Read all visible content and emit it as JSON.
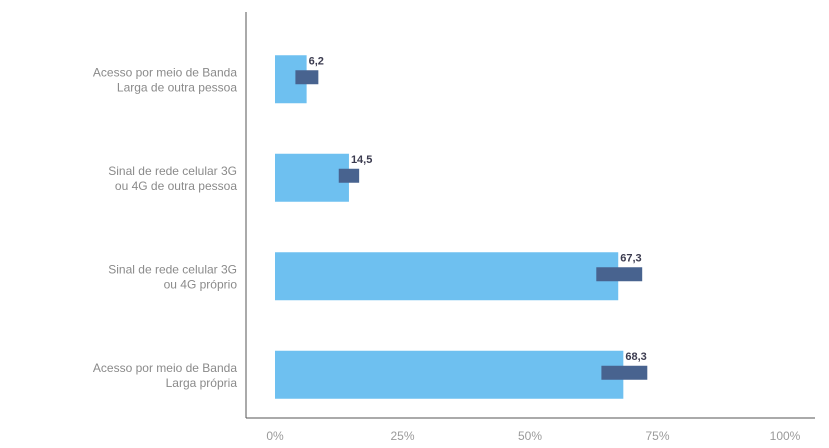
{
  "colors": {
    "bar": "#6ec0f0",
    "range": "#48638f",
    "axis": "#555555"
  },
  "chart_data": {
    "type": "bar",
    "orientation": "horizontal",
    "categories": [
      [
        "Acesso por meio de Banda",
        "Larga de outra pessoa"
      ],
      [
        "Sinal de rede celular 3G",
        "ou 4G de outra pessoa"
      ],
      [
        "Sinal de rede celular 3G",
        "ou 4G próprio"
      ],
      [
        "Acesso por meio de Banda",
        "Larga própria"
      ]
    ],
    "values": [
      6.2,
      14.5,
      67.3,
      68.3
    ],
    "value_labels": [
      "6,2",
      "14,5",
      "67,3",
      "68,3"
    ],
    "ranges": [
      [
        4,
        8.5
      ],
      [
        12.5,
        16.5
      ],
      [
        63,
        72
      ],
      [
        64,
        73
      ]
    ],
    "xlim": [
      0,
      100
    ],
    "xticks": [
      "0%",
      "25%",
      "50%",
      "75%",
      "100%"
    ],
    "grid": false
  }
}
